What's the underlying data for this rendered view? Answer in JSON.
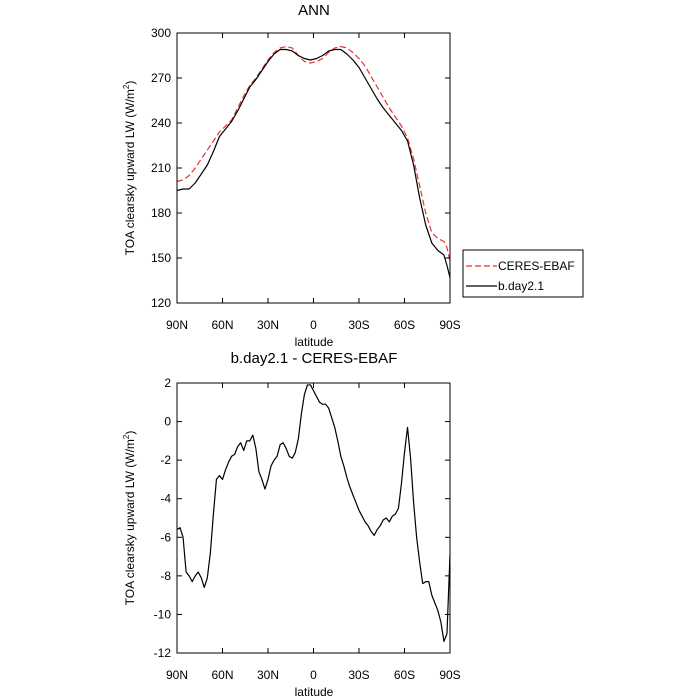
{
  "chart_data": [
    {
      "type": "line",
      "title": "ANN",
      "xlabel": "latitude",
      "ylabel": "TOA clearsky upward LW (W/m²)",
      "ylabel_main": "TOA clearsky upward LW (W/m",
      "ylabel_sup": "2",
      "ylabel_end": ")",
      "xlim": [
        90,
        -90
      ],
      "ylim": [
        120,
        300
      ],
      "xticks": [
        90,
        60,
        30,
        0,
        -30,
        -60,
        -90
      ],
      "xtick_labels": [
        "90N",
        "60N",
        "30N",
        "0",
        "30S",
        "60S",
        "90S"
      ],
      "yticks": [
        120,
        150,
        180,
        210,
        240,
        270,
        300
      ],
      "ytick_labels": [
        "120",
        "150",
        "180",
        "210",
        "240",
        "270",
        "300"
      ],
      "legend": "right",
      "series": [
        {
          "name": "CERES-EBAF",
          "color": "#e8322f",
          "dash": "dashed",
          "x": [
            90,
            86,
            82,
            78,
            74,
            70,
            66,
            62,
            58,
            54,
            50,
            46,
            42,
            38,
            34,
            30,
            26,
            22,
            18,
            14,
            10,
            6,
            2,
            -2,
            -6,
            -10,
            -14,
            -18,
            -22,
            -26,
            -30,
            -34,
            -38,
            -42,
            -46,
            -50,
            -54,
            -58,
            -62,
            -66,
            -70,
            -74,
            -78,
            -82,
            -86,
            -88,
            -90
          ],
          "y": [
            201,
            202,
            205,
            210,
            216,
            222,
            228,
            234,
            238,
            242,
            250,
            258,
            265,
            270,
            276,
            282,
            287,
            290,
            291,
            290,
            285,
            281,
            280,
            281,
            283,
            287,
            290,
            291,
            290,
            287,
            283,
            278,
            271,
            264,
            257,
            250,
            244,
            238,
            230,
            216,
            198,
            180,
            167,
            163,
            161,
            157,
            148
          ]
        },
        {
          "name": "b.day2.1",
          "color": "#000000",
          "dash": "solid",
          "x": [
            90,
            86,
            82,
            78,
            74,
            70,
            66,
            62,
            58,
            54,
            50,
            46,
            42,
            38,
            34,
            30,
            26,
            22,
            18,
            14,
            10,
            6,
            2,
            -2,
            -6,
            -10,
            -14,
            -18,
            -22,
            -26,
            -30,
            -34,
            -38,
            -42,
            -46,
            -50,
            -54,
            -58,
            -62,
            -66,
            -70,
            -74,
            -78,
            -82,
            -86,
            -88,
            -90
          ],
          "y": [
            195,
            196,
            196,
            200,
            206,
            212,
            221,
            231,
            236,
            241,
            248,
            256,
            264,
            269,
            275,
            281,
            286,
            289,
            289,
            288,
            285,
            283,
            282,
            283,
            285,
            288,
            289,
            289,
            286,
            282,
            277,
            270,
            263,
            256,
            250,
            245,
            240,
            235,
            228,
            212,
            190,
            172,
            160,
            155,
            152,
            145,
            137
          ]
        }
      ]
    },
    {
      "type": "line",
      "title": "b.day2.1 - CERES-EBAF",
      "xlabel": "latitude",
      "ylabel": "TOA clearsky upward LW (W/m²)",
      "ylabel_main": "TOA clearsky upward LW (W/m",
      "ylabel_sup": "2",
      "ylabel_end": ")",
      "xlim": [
        90,
        -90
      ],
      "ylim": [
        -12,
        2
      ],
      "xticks": [
        90,
        60,
        30,
        0,
        -30,
        -60,
        -90
      ],
      "xtick_labels": [
        "90N",
        "60N",
        "30N",
        "0",
        "30S",
        "60S",
        "90S"
      ],
      "yticks": [
        -12,
        -10,
        -8,
        -6,
        -4,
        -2,
        0,
        2
      ],
      "ytick_labels": [
        "-12",
        "-10",
        "-8",
        "-6",
        "-4",
        "-2",
        "0",
        "2"
      ],
      "series": [
        {
          "name": "b.day2.1 - CERES-EBAF",
          "color": "#000000",
          "dash": "solid",
          "x": [
            90,
            88,
            86,
            84,
            82,
            80,
            78,
            76,
            74,
            72,
            70,
            68,
            66,
            64,
            62,
            60,
            58,
            56,
            54,
            52,
            50,
            48,
            46,
            44,
            42,
            40,
            38,
            36,
            34,
            32,
            30,
            28,
            26,
            24,
            22,
            20,
            18,
            16,
            14,
            12,
            10,
            8,
            6,
            4,
            2,
            0,
            -2,
            -4,
            -6,
            -8,
            -10,
            -12,
            -14,
            -16,
            -18,
            -20,
            -22,
            -24,
            -26,
            -28,
            -30,
            -32,
            -34,
            -36,
            -38,
            -40,
            -42,
            -44,
            -46,
            -48,
            -50,
            -52,
            -54,
            -56,
            -58,
            -60,
            -62,
            -64,
            -66,
            -68,
            -70,
            -72,
            -74,
            -76,
            -78,
            -80,
            -82,
            -84,
            -86,
            -88,
            -90
          ],
          "y": [
            -5.6,
            -5.5,
            -6.0,
            -7.8,
            -8.0,
            -8.3,
            -8.0,
            -7.8,
            -8.1,
            -8.6,
            -8.1,
            -6.8,
            -4.8,
            -3.0,
            -2.8,
            -3.0,
            -2.5,
            -2.1,
            -1.8,
            -1.7,
            -1.3,
            -1.1,
            -1.5,
            -1.0,
            -1.0,
            -0.7,
            -1.4,
            -2.6,
            -3.0,
            -3.5,
            -3.0,
            -2.3,
            -2.0,
            -1.8,
            -1.2,
            -1.1,
            -1.4,
            -1.8,
            -1.9,
            -1.6,
            -0.9,
            0.4,
            1.4,
            1.9,
            1.9,
            1.6,
            1.3,
            1.0,
            0.9,
            0.9,
            0.7,
            0.2,
            -0.3,
            -1.0,
            -1.8,
            -2.3,
            -2.9,
            -3.4,
            -3.8,
            -4.2,
            -4.6,
            -4.9,
            -5.2,
            -5.4,
            -5.7,
            -5.9,
            -5.6,
            -5.4,
            -5.1,
            -5.0,
            -5.2,
            -4.9,
            -4.8,
            -4.5,
            -3.2,
            -1.6,
            -0.3,
            -1.9,
            -4.2,
            -6.0,
            -7.3,
            -8.4,
            -8.3,
            -8.3,
            -9.0,
            -9.4,
            -9.8,
            -10.4,
            -11.4,
            -11.0,
            -6.9
          ]
        }
      ]
    }
  ]
}
